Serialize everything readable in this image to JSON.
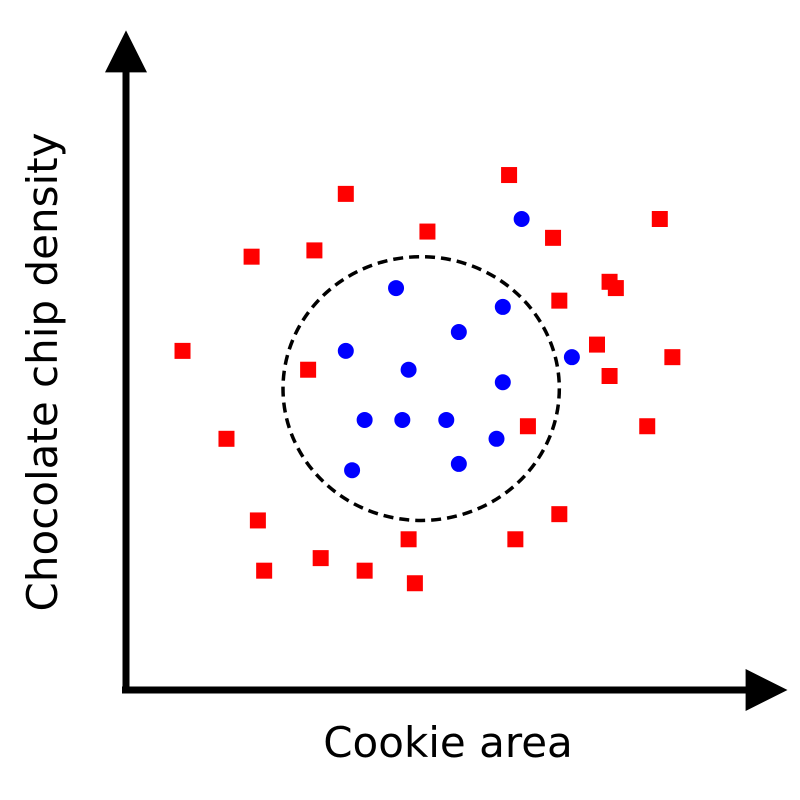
{
  "chart_data": {
    "type": "scatter",
    "title": "",
    "xlabel": "Cookie area",
    "ylabel": "Chocolate chip density",
    "xlim": [
      0,
      100
    ],
    "ylim": [
      0,
      100
    ],
    "grid": false,
    "tick_labels": false,
    "series": [
      {
        "marker": "square",
        "color": "#ff0000",
        "points": [
          [
            9,
            54
          ],
          [
            16,
            40
          ],
          [
            20,
            69
          ],
          [
            21,
            27
          ],
          [
            22,
            19
          ],
          [
            30,
            70
          ],
          [
            29,
            51
          ],
          [
            31,
            21
          ],
          [
            35,
            79
          ],
          [
            38,
            19
          ],
          [
            45,
            24
          ],
          [
            46,
            17
          ],
          [
            48,
            73
          ],
          [
            61,
            82
          ],
          [
            62,
            24
          ],
          [
            64,
            42
          ],
          [
            68,
            72
          ],
          [
            69,
            62
          ],
          [
            69,
            28
          ],
          [
            75,
            55
          ],
          [
            77,
            65
          ],
          [
            77,
            50
          ],
          [
            78,
            64
          ],
          [
            85,
            75
          ],
          [
            83,
            42
          ],
          [
            87,
            53
          ]
        ]
      },
      {
        "marker": "circle",
        "color": "#0000ff",
        "points": [
          [
            35,
            54
          ],
          [
            38,
            43
          ],
          [
            36,
            35
          ],
          [
            43,
            64
          ],
          [
            45,
            51
          ],
          [
            44,
            43
          ],
          [
            51,
            43
          ],
          [
            53,
            57
          ],
          [
            53,
            36
          ],
          [
            59,
            40
          ],
          [
            60,
            61
          ],
          [
            60,
            49
          ],
          [
            63,
            75
          ],
          [
            71,
            53
          ]
        ]
      }
    ],
    "annotations": [
      {
        "type": "circle",
        "style": "dashed",
        "color": "#000000",
        "center": [
          47,
          48
        ],
        "rx": 22,
        "ry": 21
      }
    ]
  }
}
